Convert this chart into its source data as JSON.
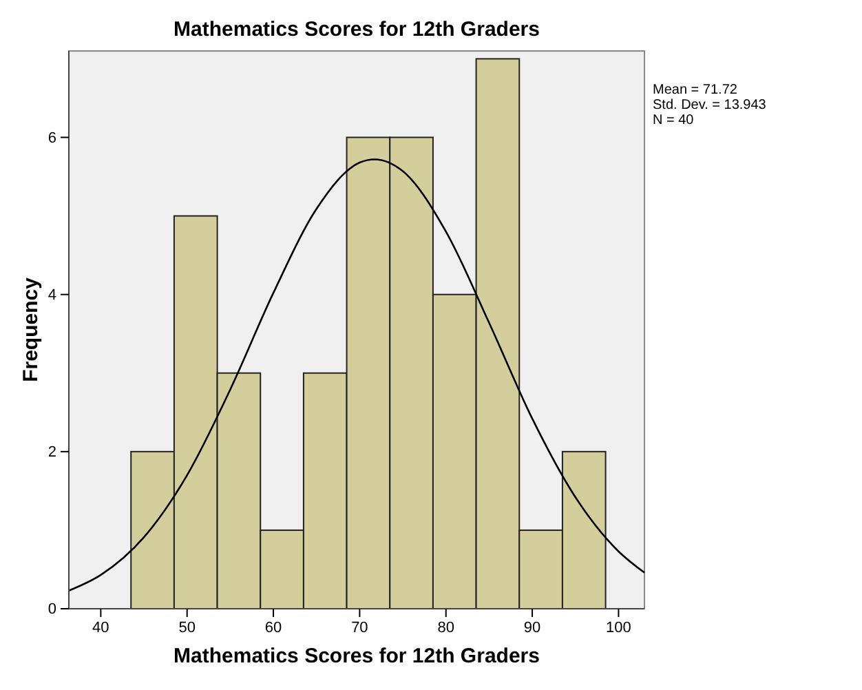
{
  "chart_data": {
    "type": "histogram",
    "title": "Mathematics Scores for 12th Graders",
    "xlabel": "Mathematics Scores for 12th Graders",
    "ylabel": "Frequency",
    "bins": [
      43.5,
      48.5,
      53.5,
      58.5,
      63.5,
      68.5,
      73.5,
      78.5,
      83.5,
      88.5,
      93.5,
      98.5
    ],
    "values": [
      2,
      5,
      3,
      1,
      3,
      6,
      6,
      4,
      7,
      1,
      2
    ],
    "color": "#d3ce9b",
    "series": [
      {
        "type": "line",
        "color": "#000000",
        "x": [
          36.3,
          40,
          45,
          50,
          55,
          60,
          65,
          70,
          71.72,
          75,
          80,
          85,
          90,
          95,
          100,
          103
        ],
        "values": [
          0.23,
          0.43,
          0.91,
          1.7,
          2.79,
          4.02,
          5.09,
          5.68,
          5.72,
          5.57,
          4.8,
          3.64,
          2.42,
          1.42,
          0.73,
          0.46
        ]
      }
    ],
    "xlim": [
      36.3,
      103
    ],
    "xticks": [
      40,
      50,
      60,
      70,
      80,
      90,
      100
    ],
    "ylim": [
      0,
      7.1
    ],
    "yticks": [
      0,
      2,
      4,
      6
    ],
    "grid": false,
    "marker": "none",
    "line_style": "solid",
    "annotations": [
      "Mean = 71.72",
      "Std. Dev. = 13.943",
      "N = 40"
    ]
  }
}
